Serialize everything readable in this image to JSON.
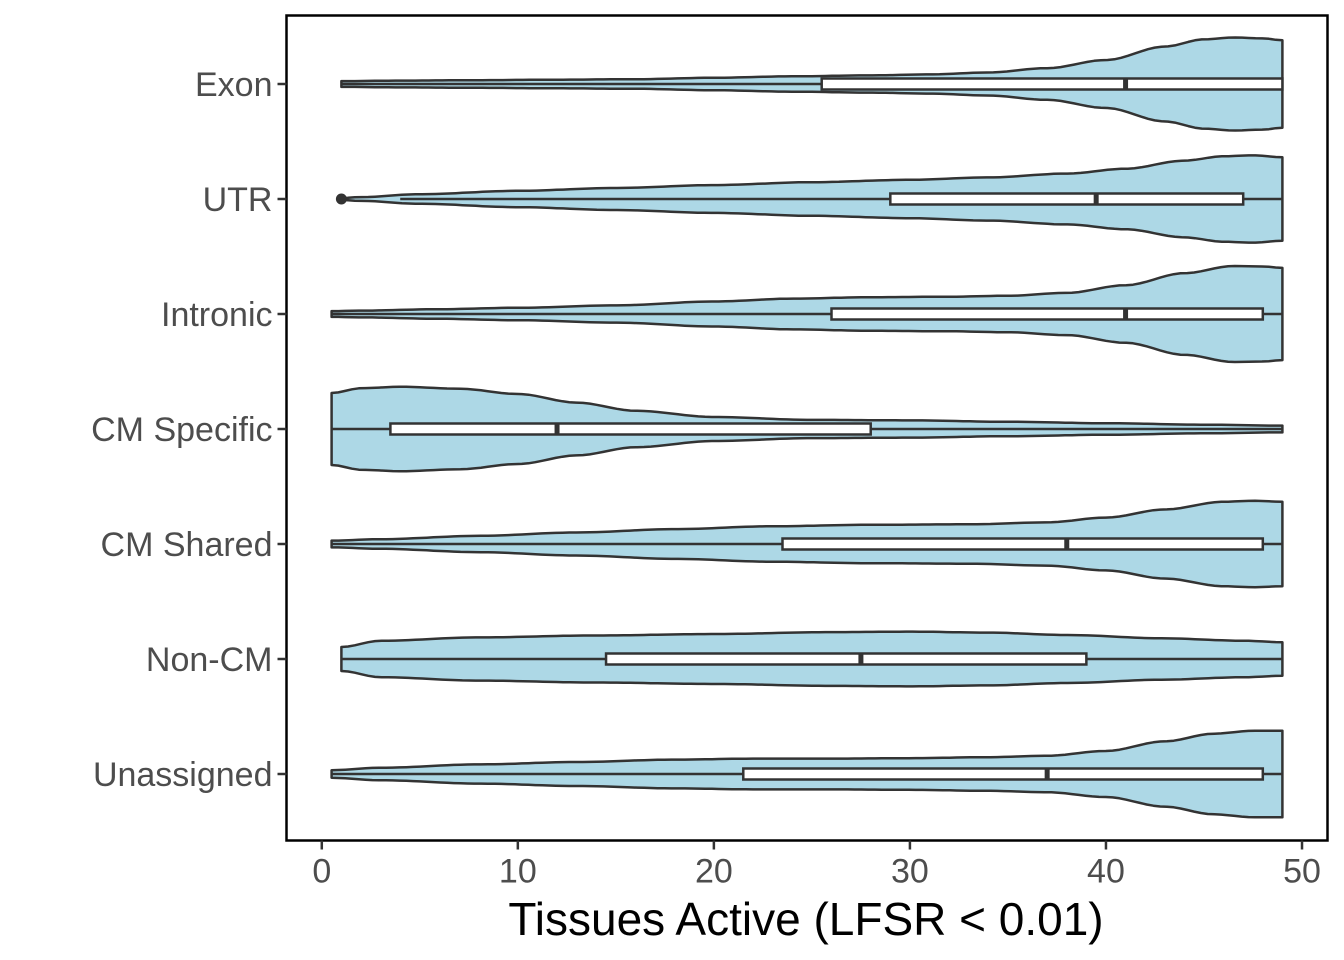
{
  "chart_data": {
    "type": "violin",
    "orientation": "horizontal",
    "title": "",
    "xlabel": "Tissues Active (LFSR < 0.01)",
    "ylabel": "",
    "xlim": [
      -1.8,
      51.3
    ],
    "xticks": [
      0,
      10,
      20,
      30,
      40,
      50
    ],
    "xtick_labels": [
      "0",
      "10",
      "20",
      "30",
      "40",
      "50"
    ],
    "categories": [
      "Exon",
      "UTR",
      "Intronic",
      "CM Specific",
      "CM Shared",
      "Non-CM",
      "Unassigned"
    ],
    "fill_color": "#add8e6",
    "line_color": "#333333",
    "grid": false,
    "legend": "none",
    "violins": [
      {
        "category": "Exon",
        "range": [
          1,
          49
        ],
        "box": {
          "q1": 25.5,
          "median": 41,
          "q3": 49
        },
        "whisker": [
          1,
          49
        ],
        "outliers": [],
        "density": [
          [
            1,
            0.06
          ],
          [
            4,
            0.07
          ],
          [
            8,
            0.08
          ],
          [
            12,
            0.09
          ],
          [
            16,
            0.1
          ],
          [
            20,
            0.13
          ],
          [
            24,
            0.16
          ],
          [
            28,
            0.18
          ],
          [
            31,
            0.2
          ],
          [
            34,
            0.24
          ],
          [
            37,
            0.33
          ],
          [
            40,
            0.5
          ],
          [
            43,
            0.78
          ],
          [
            45,
            0.93
          ],
          [
            46.5,
            0.97
          ],
          [
            48,
            0.95
          ],
          [
            49,
            0.91
          ]
        ]
      },
      {
        "category": "UTR",
        "range": [
          1,
          49
        ],
        "box": {
          "q1": 29,
          "median": 39.5,
          "q3": 47
        },
        "whisker": [
          4,
          49
        ],
        "outliers": [
          1
        ],
        "density": [
          [
            1,
            0.02
          ],
          [
            2,
            0.04
          ],
          [
            5,
            0.1
          ],
          [
            10,
            0.17
          ],
          [
            15,
            0.23
          ],
          [
            20,
            0.29
          ],
          [
            25,
            0.35
          ],
          [
            30,
            0.4
          ],
          [
            34,
            0.45
          ],
          [
            38,
            0.53
          ],
          [
            41,
            0.63
          ],
          [
            44,
            0.8
          ],
          [
            46,
            0.89
          ],
          [
            47.5,
            0.91
          ],
          [
            49,
            0.87
          ]
        ]
      },
      {
        "category": "Intronic",
        "range": [
          0.5,
          49
        ],
        "box": {
          "q1": 26,
          "median": 41,
          "q3": 48
        },
        "whisker": [
          0.5,
          49
        ],
        "outliers": [],
        "density": [
          [
            0.5,
            0.06
          ],
          [
            2,
            0.07
          ],
          [
            6,
            0.1
          ],
          [
            10,
            0.13
          ],
          [
            15,
            0.18
          ],
          [
            20,
            0.26
          ],
          [
            24,
            0.32
          ],
          [
            28,
            0.35
          ],
          [
            32,
            0.36
          ],
          [
            35,
            0.38
          ],
          [
            38,
            0.44
          ],
          [
            41,
            0.6
          ],
          [
            44,
            0.85
          ],
          [
            46.5,
            1.0
          ],
          [
            48,
            0.99
          ],
          [
            49,
            0.96
          ]
        ]
      },
      {
        "category": "CM Specific",
        "range": [
          0.5,
          49
        ],
        "box": {
          "q1": 3.5,
          "median": 12,
          "q3": 28
        },
        "whisker": [
          0.5,
          49
        ],
        "outliers": [],
        "density": [
          [
            0.5,
            0.75
          ],
          [
            2,
            0.85
          ],
          [
            4,
            0.88
          ],
          [
            7,
            0.84
          ],
          [
            10,
            0.73
          ],
          [
            13,
            0.55
          ],
          [
            16,
            0.38
          ],
          [
            20,
            0.25
          ],
          [
            25,
            0.19
          ],
          [
            30,
            0.18
          ],
          [
            35,
            0.15
          ],
          [
            40,
            0.12
          ],
          [
            45,
            0.09
          ],
          [
            49,
            0.07
          ]
        ]
      },
      {
        "category": "CM Shared",
        "range": [
          0.5,
          49
        ],
        "box": {
          "q1": 23.5,
          "median": 38,
          "q3": 48
        },
        "whisker": [
          0.5,
          49
        ],
        "outliers": [],
        "density": [
          [
            0.5,
            0.07
          ],
          [
            3,
            0.1
          ],
          [
            8,
            0.17
          ],
          [
            13,
            0.24
          ],
          [
            18,
            0.31
          ],
          [
            23,
            0.37
          ],
          [
            28,
            0.4
          ],
          [
            33,
            0.41
          ],
          [
            37,
            0.45
          ],
          [
            40,
            0.55
          ],
          [
            43,
            0.72
          ],
          [
            46,
            0.88
          ],
          [
            47.5,
            0.9
          ],
          [
            49,
            0.88
          ]
        ]
      },
      {
        "category": "Non-CM",
        "range": [
          1,
          49
        ],
        "box": {
          "q1": 14.5,
          "median": 27.5,
          "q3": 39
        },
        "whisker": [
          1,
          49
        ],
        "outliers": [],
        "density": [
          [
            1,
            0.25
          ],
          [
            3,
            0.38
          ],
          [
            8,
            0.45
          ],
          [
            14,
            0.49
          ],
          [
            20,
            0.52
          ],
          [
            26,
            0.56
          ],
          [
            30,
            0.57
          ],
          [
            34,
            0.55
          ],
          [
            38,
            0.5
          ],
          [
            43,
            0.43
          ],
          [
            47,
            0.38
          ],
          [
            49,
            0.35
          ]
        ]
      },
      {
        "category": "Unassigned",
        "range": [
          0.5,
          49
        ],
        "box": {
          "q1": 21.5,
          "median": 37,
          "q3": 48
        },
        "whisker": [
          0.5,
          49
        ],
        "outliers": [],
        "density": [
          [
            0.5,
            0.08
          ],
          [
            3,
            0.13
          ],
          [
            8,
            0.2
          ],
          [
            13,
            0.25
          ],
          [
            18,
            0.3
          ],
          [
            22,
            0.32
          ],
          [
            26,
            0.32
          ],
          [
            30,
            0.33
          ],
          [
            34,
            0.35
          ],
          [
            37,
            0.38
          ],
          [
            40,
            0.48
          ],
          [
            43,
            0.68
          ],
          [
            45.5,
            0.84
          ],
          [
            47.5,
            0.9
          ],
          [
            49,
            0.9
          ]
        ]
      }
    ]
  }
}
